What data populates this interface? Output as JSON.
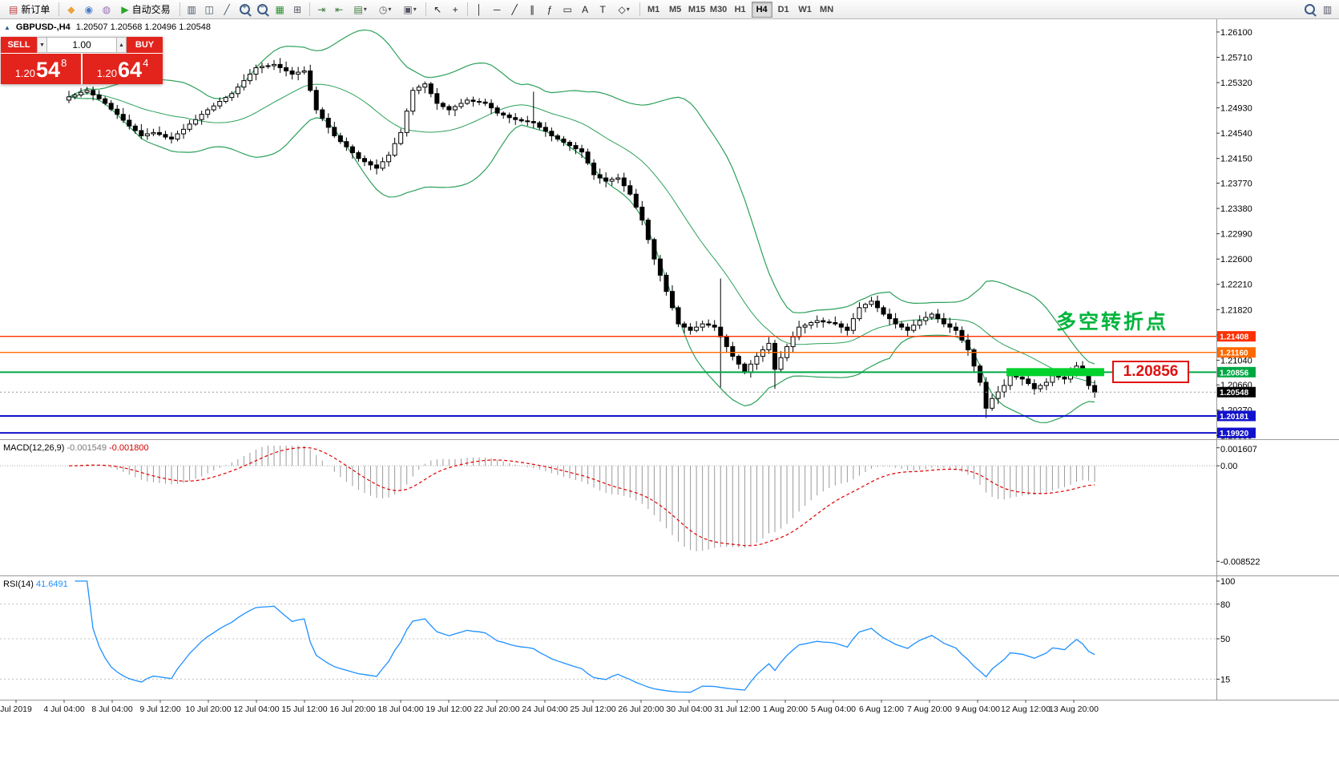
{
  "toolbar": {
    "timeframes": [
      "M1",
      "M5",
      "M15",
      "M30",
      "H1",
      "H4",
      "D1",
      "W1",
      "MN"
    ],
    "active_timeframe": "H4",
    "items": [
      {
        "type": "button",
        "name": "new-order-button",
        "glyph": "▤",
        "glyph_color": "#c23b3b",
        "label": "新订单"
      },
      {
        "type": "sep"
      },
      {
        "type": "icon",
        "name": "metaeditor-icon",
        "glyph": "◆",
        "color": "#e8a33c"
      },
      {
        "type": "icon",
        "name": "profile-icon",
        "glyph": "◉",
        "color": "#4a7dc9"
      },
      {
        "type": "icon",
        "name": "community-icon",
        "glyph": "◍",
        "color": "#9a6fb5"
      },
      {
        "type": "button",
        "name": "autotrading-button",
        "glyph": "▶",
        "glyph_color": "#2aa52a",
        "label": "自动交易"
      },
      {
        "type": "sep"
      },
      {
        "type": "icon",
        "name": "bar-chart-icon",
        "glyph": "▥",
        "color": "#445566"
      },
      {
        "type": "icon",
        "name": "candlestick-chart-icon",
        "glyph": "◫",
        "color": "#445566"
      },
      {
        "type": "icon",
        "name": "line-chart-icon",
        "glyph": "╱",
        "color": "#445566"
      },
      {
        "type": "mag",
        "name": "zoom-in-icon",
        "sign": "+"
      },
      {
        "type": "mag",
        "name": "zoom-out-icon",
        "sign": "−"
      },
      {
        "type": "icon",
        "name": "strategy-tester-icon",
        "glyph": "▦",
        "color": "#2f8f2f"
      },
      {
        "type": "icon",
        "name": "new-window-icon",
        "glyph": "⊞",
        "color": "#556"
      },
      {
        "type": "sep"
      },
      {
        "type": "icon",
        "name": "auto-scroll-icon",
        "glyph": "⇥",
        "color": "#3a7a3a"
      },
      {
        "type": "icon",
        "name": "chart-shift-icon",
        "glyph": "⇤",
        "color": "#3a7a3a"
      },
      {
        "type": "dropdown",
        "name": "new-chart-dropdown",
        "glyph": "▤",
        "color": "#3a7a3a"
      },
      {
        "type": "dropdown",
        "name": "profiles-dropdown",
        "glyph": "◷",
        "color": "#556"
      },
      {
        "type": "dropdown",
        "name": "templates-dropdown",
        "glyph": "▣",
        "color": "#556"
      },
      {
        "type": "sep"
      },
      {
        "type": "icon",
        "name": "cursor-icon",
        "glyph": "↖",
        "color": "#222"
      },
      {
        "type": "icon",
        "name": "crosshair-icon",
        "glyph": "+",
        "color": "#222"
      },
      {
        "type": "sep"
      },
      {
        "type": "icon",
        "name": "vertical-line-icon",
        "glyph": "│",
        "color": "#222"
      },
      {
        "type": "icon",
        "name": "horizontal-line-icon",
        "glyph": "─",
        "color": "#222"
      },
      {
        "type": "icon",
        "name": "trendline-icon",
        "glyph": "╱",
        "color": "#222"
      },
      {
        "type": "icon",
        "name": "channel-icon",
        "glyph": "∥",
        "color": "#222"
      },
      {
        "type": "icon",
        "name": "fibonacci-icon",
        "glyph": "ƒ",
        "color": "#222"
      },
      {
        "type": "icon",
        "name": "shapes-icon",
        "glyph": "▭",
        "color": "#222"
      },
      {
        "type": "icon",
        "name": "text-icon",
        "glyph": "A",
        "color": "#222"
      },
      {
        "type": "icon",
        "name": "text-label-icon",
        "glyph": "T",
        "color": "#222"
      },
      {
        "type": "dropdown",
        "name": "arrows-dropdown",
        "glyph": "◇",
        "color": "#222"
      },
      {
        "type": "sep"
      },
      {
        "type": "timeframes"
      },
      {
        "type": "spacer"
      },
      {
        "type": "mag",
        "name": "search-icon",
        "sign": ""
      },
      {
        "type": "icon",
        "name": "window-list-icon",
        "glyph": "▥",
        "color": "#556"
      }
    ]
  },
  "trade_panel": {
    "sell_label": "SELL",
    "buy_label": "BUY",
    "volume": "1.00",
    "step_down_icon": "▼",
    "step_up_icon": "▲",
    "sell_price_small": "1.20",
    "sell_price_big": "54",
    "sell_price_sup": "8",
    "buy_price_small": "1.20",
    "buy_price_big": "64",
    "buy_price_sup": "4",
    "button_color": "#e2241d"
  },
  "chart_header": {
    "icon": "▲",
    "symbol": "GBPUSD-,H4",
    "ohlc": "1.20507 1.20568 1.20496 1.20548"
  },
  "annotation": {
    "text": "多空转折点",
    "color": "#00b43c"
  },
  "price_callout": {
    "text": "1.20856",
    "color": "#e01010"
  },
  "chart_data": {
    "type": "candlestick",
    "title": "GBPUSD H4 with Bollinger Bands, MACD(12,26,9) and RSI(14)",
    "x_labels": [
      "Jul 2019",
      "4 Jul 04:00",
      "8 Jul 04:00",
      "9 Jul 12:00",
      "10 Jul 20:00",
      "12 Jul 04:00",
      "15 Jul 12:00",
      "16 Jul 20:00",
      "18 Jul 04:00",
      "19 Jul 12:00",
      "22 Jul 20:00",
      "24 Jul 04:00",
      "25 Jul 12:00",
      "26 Jul 20:00",
      "30 Jul 04:00",
      "31 Jul 12:00",
      "1 Aug 20:00",
      "5 Aug 04:00",
      "6 Aug 12:00",
      "7 Aug 20:00",
      "9 Aug 04:00",
      "12 Aug 12:00",
      "13 Aug 20:00"
    ],
    "price_panel": {
      "y_tick_labels": [
        "1.26100",
        "1.25710",
        "1.25320",
        "1.24930",
        "1.24540",
        "1.24150",
        "1.23770",
        "1.23380",
        "1.22990",
        "1.22600",
        "1.22210",
        "1.21820",
        "1.21430",
        "1.21040",
        "1.20660",
        "1.20270",
        "1.19880"
      ],
      "y_range": [
        1.19822,
        1.26272
      ],
      "open_first": 1.2505,
      "closes": [
        1.251,
        1.2513,
        1.2517,
        1.252,
        1.2513,
        1.2507,
        1.25,
        1.2491,
        1.2483,
        1.2474,
        1.2465,
        1.2458,
        1.245,
        1.2453,
        1.2455,
        1.2452,
        1.2448,
        1.2445,
        1.2453,
        1.246,
        1.2468,
        1.2475,
        1.2483,
        1.249,
        1.2496,
        1.2503,
        1.2509,
        1.2515,
        1.2525,
        1.2535,
        1.2545,
        1.2555,
        1.2557,
        1.2558,
        1.256,
        1.2555,
        1.255,
        1.2545,
        1.2548,
        1.255,
        1.252,
        1.249,
        1.2477,
        1.2463,
        1.245,
        1.2441,
        1.2433,
        1.2424,
        1.2415,
        1.241,
        1.2405,
        1.24,
        1.241,
        1.242,
        1.2438,
        1.2455,
        1.2488,
        1.252,
        1.2525,
        1.253,
        1.2515,
        1.25,
        1.2495,
        1.249,
        1.2495,
        1.25,
        1.2505,
        1.2503,
        1.2502,
        1.25,
        1.2493,
        1.2485,
        1.2482,
        1.2478,
        1.2475,
        1.2473,
        1.2472,
        1.247,
        1.2463,
        1.2457,
        1.245,
        1.2445,
        1.244,
        1.2435,
        1.243,
        1.2425,
        1.2408,
        1.239,
        1.2385,
        1.238,
        1.2383,
        1.2385,
        1.2373,
        1.236,
        1.234,
        1.232,
        1.229,
        1.226,
        1.2235,
        1.221,
        1.2185,
        1.216,
        1.2155,
        1.215,
        1.2155,
        1.216,
        1.2158,
        1.2155,
        1.214,
        1.2125,
        1.211,
        1.2098,
        1.2085,
        1.2098,
        1.211,
        1.212,
        1.213,
        1.209,
        1.2108,
        1.2125,
        1.214,
        1.2155,
        1.2158,
        1.2162,
        1.2165,
        1.2163,
        1.2162,
        1.216,
        1.2155,
        1.215,
        1.2168,
        1.2185,
        1.219,
        1.2195,
        1.2185,
        1.2175,
        1.2168,
        1.216,
        1.2155,
        1.215,
        1.2158,
        1.2165,
        1.217,
        1.2175,
        1.2168,
        1.216,
        1.2155,
        1.215,
        1.2135,
        1.212,
        1.2095,
        1.207,
        1.203,
        1.2045,
        1.2055,
        1.2065,
        1.208,
        1.2078,
        1.2075,
        1.2068,
        1.206,
        1.2065,
        1.207,
        1.208,
        1.2078,
        1.2075,
        1.2085,
        1.2095,
        1.2085,
        1.2065,
        1.20548
      ],
      "special_wicks": {
        "77": {
          "h": 1.2518
        },
        "108": {
          "h": 1.223,
          "l": 1.2062
        },
        "117": {
          "l": 1.206
        },
        "152": {
          "l": 1.2015
        }
      },
      "bollinger": {
        "period": 20,
        "deviation": 2,
        "color": "#2ca05a"
      },
      "candle_up_color": "#ffffff",
      "candle_down_color": "#000000",
      "candle_outline": "#000000",
      "hlines": [
        {
          "price": 1.21408,
          "label": "1.21408",
          "color": "#ff3000",
          "width": 1.4
        },
        {
          "price": 1.2116,
          "label": "1.21160",
          "color": "#ff6a00",
          "width": 1.4
        },
        {
          "price": 1.20856,
          "label": "1.20856",
          "color": "#00a844",
          "width": 2
        },
        {
          "price": 1.20181,
          "label": "1.20181",
          "color": "#1212cc",
          "width": 2
        },
        {
          "price": 1.1992,
          "label": "1.19920",
          "color": "#1212cc",
          "width": 2
        }
      ],
      "current_price": {
        "price": 1.20548,
        "label": "1.20548",
        "tag_color": "#000000"
      },
      "highlight": {
        "price": 1.20856,
        "color": "#00d22c"
      }
    },
    "macd_panel": {
      "name": "MACD(12,26,9)",
      "values": [
        "-0.001549",
        "-0.001800"
      ],
      "y_ticks": [
        {
          "v": 0.001607,
          "label": "0.001607"
        },
        {
          "v": 0,
          "label": "0.00"
        },
        {
          "v": -0.008522,
          "label": "-0.008522"
        }
      ],
      "y_range": [
        -0.0095,
        0.0018
      ],
      "histogram_color": "#9a9a9a",
      "signal_color": "#e00000"
    },
    "rsi_panel": {
      "name": "RSI(14)",
      "value": "41.6491",
      "levels": [
        80,
        50,
        15
      ],
      "y_tick_labels": [
        {
          "v": 100,
          "label": "100"
        },
        {
          "v": 80,
          "label": "80"
        },
        {
          "v": 50,
          "label": "50"
        },
        {
          "v": 15,
          "label": "15"
        }
      ],
      "y_range": [
        0,
        100
      ],
      "line_color": "#1e90ff"
    }
  }
}
